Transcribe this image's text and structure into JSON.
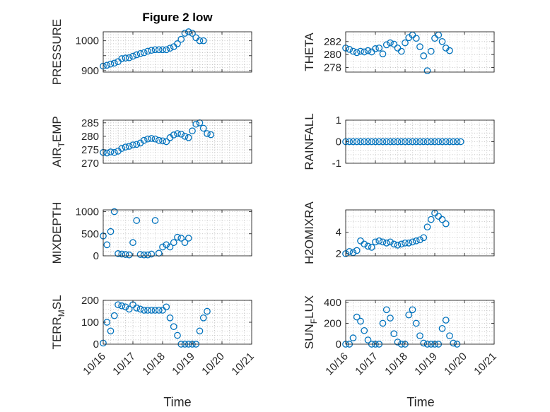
{
  "figure": {
    "title": "Figure 2 low",
    "xlabel": "Time"
  },
  "chart_data": [
    {
      "type": "scatter",
      "panel": "top-left",
      "title": "Figure 2 low",
      "xlabel": "",
      "ylabel": "PRESSURE",
      "xlim": [
        "10/16",
        "10/21"
      ],
      "x_ticks": [],
      "ylim": [
        895,
        1030
      ],
      "y_ticks": [
        900,
        950,
        1000
      ],
      "y_tick_labels": [
        "900",
        "",
        "1000"
      ],
      "minor_y_grid": 10,
      "grid": true,
      "x": [
        "10/16 00:00",
        "10/16 03:00",
        "10/16 06:00",
        "10/16 09:00",
        "10/16 12:00",
        "10/16 15:00",
        "10/16 18:00",
        "10/16 21:00",
        "10/17 00:00",
        "10/17 03:00",
        "10/17 06:00",
        "10/17 09:00",
        "10/17 12:00",
        "10/17 15:00",
        "10/17 18:00",
        "10/17 21:00",
        "10/18 00:00",
        "10/18 03:00",
        "10/18 06:00",
        "10/18 09:00",
        "10/18 12:00",
        "10/18 15:00",
        "10/18 18:00",
        "10/18 21:00",
        "10/19 00:00",
        "10/19 03:00",
        "10/19 06:00",
        "10/19 09:00",
        "10/19 12:00",
        "10/19 15:00",
        "10/19 18:00",
        "10/19 21:00"
      ],
      "y": [
        915,
        918,
        922,
        925,
        930,
        940,
        942,
        943,
        948,
        953,
        957,
        960,
        965,
        968,
        970,
        970,
        970,
        970,
        975,
        980,
        990,
        1005,
        1025,
        1030,
        1025,
        1010,
        1000,
        1000,
        null,
        null,
        null,
        null
      ]
    },
    {
      "type": "scatter",
      "panel": "top-right",
      "title": "",
      "xlabel": "",
      "ylabel": "THETA",
      "xlim": [
        "10/16",
        "10/21"
      ],
      "x_ticks": [],
      "ylim": [
        277.3,
        283.5
      ],
      "y_ticks": [
        278,
        280,
        282
      ],
      "y_tick_labels": [
        "278",
        "280",
        "282"
      ],
      "minor_y_grid": 1,
      "grid": true,
      "x": [
        "10/16 00:00",
        "10/16 03:00",
        "10/16 06:00",
        "10/16 09:00",
        "10/16 12:00",
        "10/16 15:00",
        "10/16 18:00",
        "10/16 21:00",
        "10/17 00:00",
        "10/17 03:00",
        "10/17 06:00",
        "10/17 09:00",
        "10/17 12:00",
        "10/17 15:00",
        "10/17 18:00",
        "10/17 21:00",
        "10/18 00:00",
        "10/18 03:00",
        "10/18 06:00",
        "10/18 09:00",
        "10/18 12:00",
        "10/18 15:00",
        "10/18 18:00",
        "10/18 21:00",
        "10/19 00:00",
        "10/19 03:00",
        "10/19 06:00",
        "10/19 09:00",
        "10/19 12:00",
        "10/19 15:00",
        "10/19 18:00",
        "10/19 21:00"
      ],
      "y": [
        281.0,
        280.8,
        280.5,
        280.3,
        280.5,
        280.4,
        280.6,
        280.4,
        280.9,
        281.0,
        280.1,
        281.5,
        281.8,
        281.6,
        281.0,
        280.5,
        281.8,
        282.6,
        283.0,
        282.5,
        281.2,
        279.8,
        277.5,
        280.5,
        282.5,
        283.0,
        282.0,
        281.0,
        280.6,
        null,
        null,
        null
      ]
    },
    {
      "type": "scatter",
      "panel": "second-left",
      "title": "",
      "xlabel": "",
      "ylabel": "AIR_TEMP",
      "xlim": [
        "10/16",
        "10/21"
      ],
      "x_ticks": [],
      "ylim": [
        270,
        286
      ],
      "y_ticks": [
        270,
        275,
        280,
        285
      ],
      "y_tick_labels": [
        "270",
        "275",
        "280",
        "285"
      ],
      "minor_y_grid": 1,
      "grid": true,
      "x": [
        "10/16 00:00",
        "10/16 03:00",
        "10/16 06:00",
        "10/16 09:00",
        "10/16 12:00",
        "10/16 15:00",
        "10/16 18:00",
        "10/16 21:00",
        "10/17 00:00",
        "10/17 03:00",
        "10/17 06:00",
        "10/17 09:00",
        "10/17 12:00",
        "10/17 15:00",
        "10/17 18:00",
        "10/17 21:00",
        "10/18 00:00",
        "10/18 03:00",
        "10/18 06:00",
        "10/18 09:00",
        "10/18 12:00",
        "10/18 15:00",
        "10/18 18:00",
        "10/18 21:00",
        "10/19 00:00",
        "10/19 03:00",
        "10/19 06:00",
        "10/19 09:00",
        "10/19 12:00",
        "10/19 15:00",
        "10/19 18:00",
        "10/19 21:00"
      ],
      "y": [
        274.0,
        273.8,
        274.2,
        274.0,
        274.5,
        275.5,
        276.0,
        276.3,
        276.8,
        277.0,
        277.5,
        278.5,
        279.0,
        279.2,
        279.0,
        278.5,
        278.3,
        278.0,
        279.5,
        280.5,
        281.0,
        280.8,
        280.0,
        279.5,
        282.0,
        284.5,
        285.0,
        283.0,
        281.0,
        280.6,
        null,
        null
      ]
    },
    {
      "type": "scatter",
      "panel": "second-right",
      "title": "",
      "xlabel": "",
      "ylabel": "RAINFALL",
      "xlim": [
        "10/16",
        "10/21"
      ],
      "x_ticks": [],
      "ylim": [
        -1,
        1
      ],
      "y_ticks": [
        -1,
        0,
        1
      ],
      "y_tick_labels": [
        "-1",
        "0",
        "1"
      ],
      "minor_y_grid": 0.2,
      "grid": true,
      "x": [
        "10/16 00:00",
        "10/16 03:00",
        "10/16 06:00",
        "10/16 09:00",
        "10/16 12:00",
        "10/16 15:00",
        "10/16 18:00",
        "10/16 21:00",
        "10/17 00:00",
        "10/17 03:00",
        "10/17 06:00",
        "10/17 09:00",
        "10/17 12:00",
        "10/17 15:00",
        "10/17 18:00",
        "10/17 21:00",
        "10/18 00:00",
        "10/18 03:00",
        "10/18 06:00",
        "10/18 09:00",
        "10/18 12:00",
        "10/18 15:00",
        "10/18 18:00",
        "10/18 21:00",
        "10/19 00:00",
        "10/19 03:00",
        "10/19 06:00",
        "10/19 09:00",
        "10/19 12:00",
        "10/19 15:00",
        "10/19 18:00",
        "10/19 21:00"
      ],
      "y": [
        0,
        0,
        0,
        0,
        0,
        0,
        0,
        0,
        0,
        0,
        0,
        0,
        0,
        0,
        0,
        0,
        0,
        0,
        0,
        0,
        0,
        0,
        0,
        0,
        0,
        0,
        0,
        0,
        0,
        0,
        0,
        0
      ]
    },
    {
      "type": "scatter",
      "panel": "third-left",
      "title": "",
      "xlabel": "",
      "ylabel": "MIXDEPTH",
      "xlim": [
        "10/16",
        "10/21"
      ],
      "x_ticks": [],
      "ylim": [
        0,
        1040
      ],
      "y_ticks": [
        0,
        500,
        1000
      ],
      "y_tick_labels": [
        "0",
        "500",
        "1000"
      ],
      "minor_y_grid": 100,
      "grid": true,
      "x": [
        "10/16 00:00",
        "10/16 03:00",
        "10/16 06:00",
        "10/16 09:00",
        "10/16 12:00",
        "10/16 15:00",
        "10/16 18:00",
        "10/16 21:00",
        "10/17 00:00",
        "10/17 03:00",
        "10/17 06:00",
        "10/17 09:00",
        "10/17 12:00",
        "10/17 15:00",
        "10/17 18:00",
        "10/17 21:00",
        "10/18 00:00",
        "10/18 03:00",
        "10/18 06:00",
        "10/18 09:00",
        "10/18 12:00",
        "10/18 15:00",
        "10/18 18:00",
        "10/18 21:00",
        "10/19 00:00",
        "10/19 03:00",
        "10/19 06:00",
        "10/19 09:00",
        "10/19 12:00",
        "10/19 15:00",
        "10/19 18:00",
        "10/19 21:00"
      ],
      "y": [
        450,
        250,
        550,
        1000,
        50,
        40,
        30,
        20,
        300,
        800,
        30,
        20,
        20,
        40,
        800,
        60,
        200,
        250,
        200,
        300,
        420,
        400,
        300,
        400,
        null,
        null,
        null,
        null,
        null,
        null,
        null,
        null
      ]
    },
    {
      "type": "scatter",
      "panel": "third-right",
      "title": "",
      "xlabel": "",
      "ylabel": "H2OMIXRA",
      "xlim": [
        "10/16",
        "10/21"
      ],
      "x_ticks": [],
      "ylim": [
        1.8,
        6.1
      ],
      "y_ticks": [
        2,
        4
      ],
      "y_tick_labels": [
        "2",
        "4"
      ],
      "minor_y_grid": 0.5,
      "grid": true,
      "x": [
        "10/16 00:00",
        "10/16 03:00",
        "10/16 06:00",
        "10/16 09:00",
        "10/16 12:00",
        "10/16 15:00",
        "10/16 18:00",
        "10/16 21:00",
        "10/17 00:00",
        "10/17 03:00",
        "10/17 06:00",
        "10/17 09:00",
        "10/17 12:00",
        "10/17 15:00",
        "10/17 18:00",
        "10/17 21:00",
        "10/18 00:00",
        "10/18 03:00",
        "10/18 06:00",
        "10/18 09:00",
        "10/18 12:00",
        "10/18 15:00",
        "10/18 18:00",
        "10/18 21:00",
        "10/19 00:00",
        "10/19 03:00",
        "10/19 06:00",
        "10/19 09:00",
        "10/19 12:00",
        "10/19 15:00",
        "10/19 18:00",
        "10/19 21:00"
      ],
      "y": [
        2.0,
        2.2,
        2.1,
        2.3,
        3.2,
        2.9,
        2.7,
        2.6,
        3.1,
        3.2,
        3.1,
        3.0,
        3.1,
        2.9,
        2.8,
        2.9,
        3.0,
        3.0,
        3.1,
        3.2,
        3.3,
        3.5,
        4.5,
        5.2,
        5.8,
        5.5,
        5.2,
        4.8,
        null,
        null,
        null,
        null
      ]
    },
    {
      "type": "scatter",
      "panel": "bottom-left",
      "title": "",
      "xlabel": "Time",
      "ylabel": "TERR_MSL",
      "xlim": [
        "10/16",
        "10/21"
      ],
      "x_ticks": [
        "10/16",
        "10/17",
        "10/18",
        "10/19",
        "10/20",
        "10/21"
      ],
      "ylim": [
        0,
        200
      ],
      "y_ticks": [
        0,
        100,
        200
      ],
      "y_tick_labels": [
        "0",
        "100",
        "200"
      ],
      "minor_y_grid": 20,
      "grid": true,
      "x": [
        "10/16 00:00",
        "10/16 03:00",
        "10/16 06:00",
        "10/16 09:00",
        "10/16 12:00",
        "10/16 15:00",
        "10/16 18:00",
        "10/16 21:00",
        "10/17 00:00",
        "10/17 03:00",
        "10/17 06:00",
        "10/17 09:00",
        "10/17 12:00",
        "10/17 15:00",
        "10/17 18:00",
        "10/17 21:00",
        "10/18 00:00",
        "10/18 03:00",
        "10/18 06:00",
        "10/18 09:00",
        "10/18 12:00",
        "10/18 15:00",
        "10/18 18:00",
        "10/18 21:00",
        "10/19 00:00",
        "10/19 03:00",
        "10/19 06:00",
        "10/19 09:00",
        "10/19 12:00",
        "10/19 15:00",
        "10/19 18:00",
        "10/19 21:00"
      ],
      "y": [
        5,
        100,
        60,
        130,
        180,
        175,
        170,
        160,
        180,
        165,
        160,
        155,
        155,
        155,
        155,
        155,
        155,
        170,
        120,
        80,
        40,
        0,
        0,
        0,
        0,
        0,
        60,
        120,
        150,
        null,
        null,
        null
      ]
    },
    {
      "type": "scatter",
      "panel": "bottom-right",
      "title": "",
      "xlabel": "Time",
      "ylabel": "SUN_FLUX",
      "xlim": [
        "10/16",
        "10/21"
      ],
      "x_ticks": [
        "10/16",
        "10/17",
        "10/18",
        "10/19",
        "10/20",
        "10/21"
      ],
      "ylim": [
        0,
        420
      ],
      "y_ticks": [
        0,
        200,
        400
      ],
      "y_tick_labels": [
        "0",
        "200",
        "400"
      ],
      "minor_y_grid": 40,
      "grid": true,
      "x": [
        "10/16 00:00",
        "10/16 03:00",
        "10/16 06:00",
        "10/16 09:00",
        "10/16 12:00",
        "10/16 15:00",
        "10/16 18:00",
        "10/16 21:00",
        "10/17 00:00",
        "10/17 03:00",
        "10/17 06:00",
        "10/17 09:00",
        "10/17 12:00",
        "10/17 15:00",
        "10/17 18:00",
        "10/17 21:00",
        "10/18 00:00",
        "10/18 03:00",
        "10/18 06:00",
        "10/18 09:00",
        "10/18 12:00",
        "10/18 15:00",
        "10/18 18:00",
        "10/18 21:00",
        "10/19 00:00",
        "10/19 03:00",
        "10/19 06:00",
        "10/19 09:00",
        "10/19 12:00",
        "10/19 15:00",
        "10/19 18:00",
        "10/19 21:00"
      ],
      "y": [
        0,
        0,
        60,
        260,
        220,
        130,
        40,
        0,
        0,
        0,
        200,
        330,
        250,
        100,
        20,
        0,
        0,
        280,
        330,
        200,
        80,
        10,
        0,
        0,
        0,
        0,
        150,
        230,
        80,
        10,
        0,
        null
      ]
    }
  ]
}
